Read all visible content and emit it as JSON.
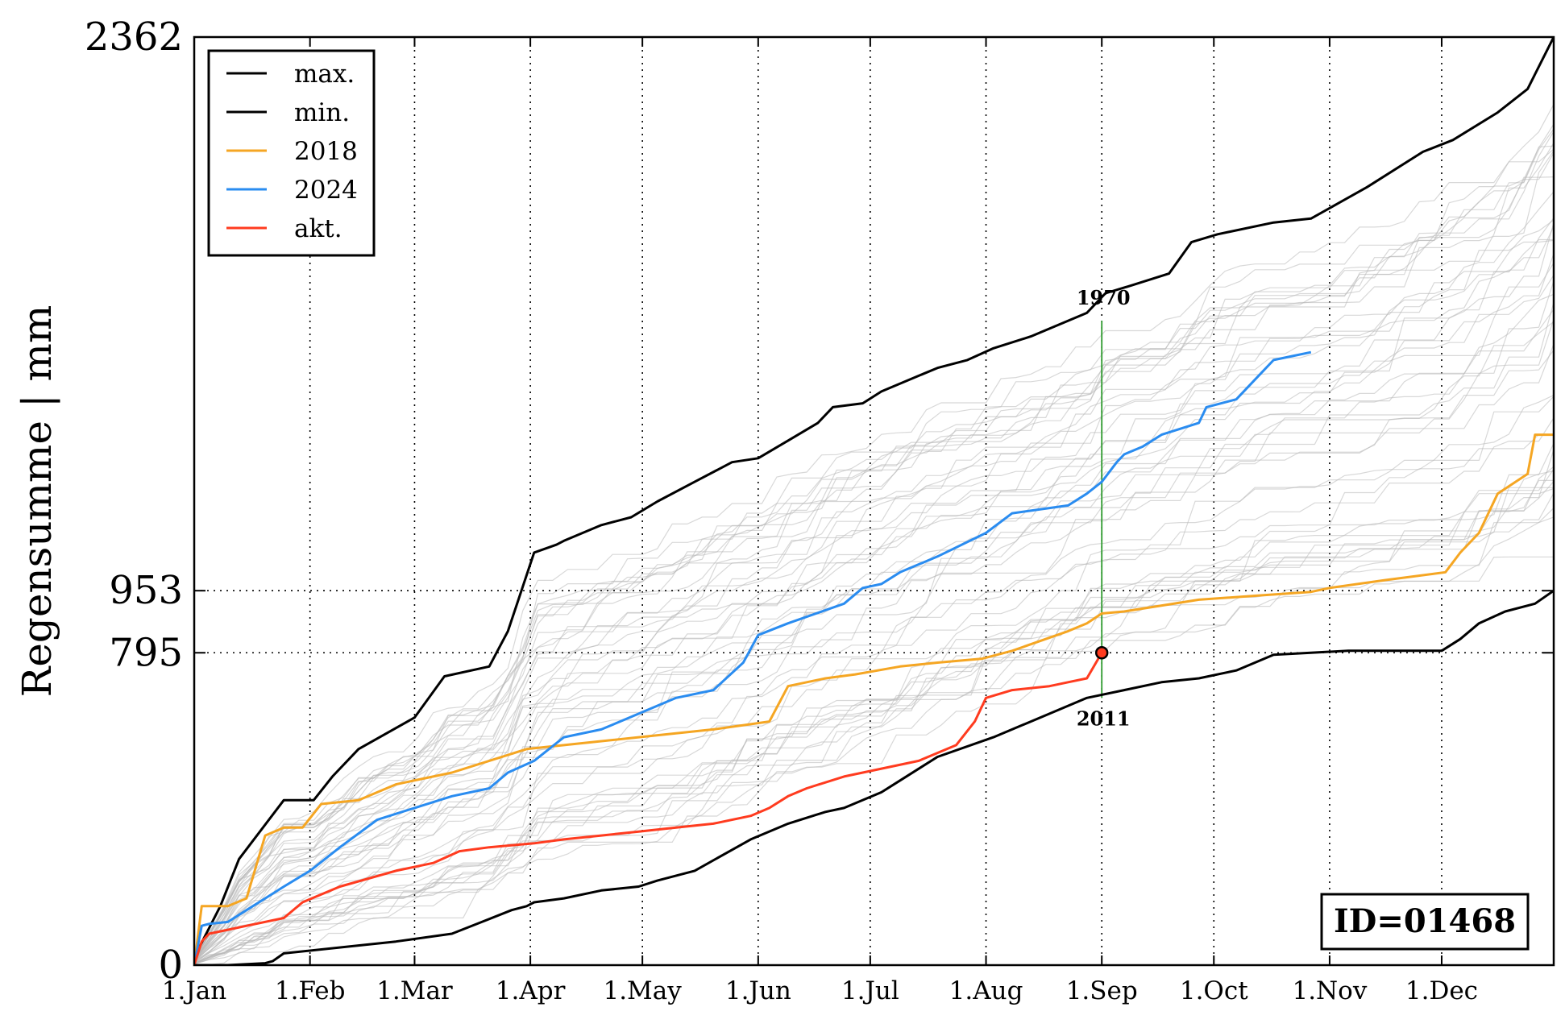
{
  "chart_data": {
    "type": "line",
    "title": "",
    "xlabel": "",
    "ylabel": "Regensumme | mm",
    "x_unit": "day of year",
    "xlim": [
      1,
      365
    ],
    "ylim": [
      0,
      2362
    ],
    "yticks": [
      0,
      795,
      953,
      2362
    ],
    "yticks_dotted_reference": [
      795,
      953
    ],
    "x_ticks": [
      {
        "label": "1.Jan",
        "day": 1
      },
      {
        "label": "1.Feb",
        "day": 32
      },
      {
        "label": "1.Mar",
        "day": 60
      },
      {
        "label": "1.Apr",
        "day": 91
      },
      {
        "label": "1.May",
        "day": 121
      },
      {
        "label": "1.Jun",
        "day": 152
      },
      {
        "label": "1.Jul",
        "day": 182
      },
      {
        "label": "1.Aug",
        "day": 213
      },
      {
        "label": "1.Sep",
        "day": 244
      },
      {
        "label": "1.Oct",
        "day": 274
      },
      {
        "label": "1.Nov",
        "day": 305
      },
      {
        "label": "1.Dec",
        "day": 335
      }
    ],
    "grid": "dotted vertical at month starts",
    "legend_position": "top-left",
    "series": [
      {
        "name": "max.",
        "color": "#000000",
        "x": [
          1,
          8,
          13,
          25,
          33,
          38,
          45,
          60,
          68,
          80,
          85,
          92,
          98,
          100,
          105,
          110,
          118,
          125,
          135,
          145,
          152,
          160,
          168,
          172,
          180,
          185,
          195,
          200,
          208,
          215,
          225,
          235,
          240,
          245,
          252,
          262,
          268,
          275,
          290,
          300,
          315,
          330,
          338,
          350,
          358,
          365
        ],
        "y": [
          20,
          150,
          270,
          420,
          420,
          480,
          550,
          630,
          735,
          760,
          850,
          1050,
          1070,
          1080,
          1100,
          1120,
          1140,
          1180,
          1230,
          1280,
          1290,
          1335,
          1380,
          1420,
          1430,
          1460,
          1500,
          1520,
          1540,
          1570,
          1600,
          1640,
          1660,
          1710,
          1730,
          1760,
          1840,
          1860,
          1890,
          1900,
          1980,
          2070,
          2100,
          2170,
          2230,
          2362
        ]
      },
      {
        "name": "min.",
        "color": "#000000",
        "x": [
          1,
          10,
          20,
          22,
          25,
          45,
          55,
          70,
          78,
          86,
          90,
          92,
          100,
          110,
          120,
          125,
          135,
          150,
          160,
          170,
          175,
          185,
          190,
          200,
          215,
          230,
          240,
          250,
          260,
          270,
          280,
          290,
          310,
          320,
          330,
          335,
          340,
          345,
          352,
          360,
          365
        ],
        "y": [
          0,
          0,
          5,
          10,
          30,
          50,
          60,
          80,
          110,
          140,
          150,
          160,
          170,
          190,
          200,
          215,
          240,
          320,
          360,
          390,
          400,
          440,
          470,
          530,
          580,
          640,
          680,
          700,
          720,
          730,
          750,
          790,
          800,
          800,
          800,
          800,
          830,
          870,
          900,
          920,
          953
        ]
      },
      {
        "name": "2018",
        "color": "#f5a623",
        "x": [
          1,
          3,
          5,
          10,
          15,
          20,
          25,
          30,
          35,
          45,
          55,
          70,
          80,
          90,
          100,
          110,
          120,
          140,
          155,
          160,
          170,
          178,
          190,
          200,
          212,
          220,
          235,
          240,
          244,
          250,
          270,
          285,
          300,
          305,
          320,
          336,
          340,
          345,
          350,
          358,
          360,
          365
        ],
        "y": [
          0,
          150,
          150,
          150,
          170,
          330,
          350,
          350,
          410,
          420,
          460,
          490,
          520,
          550,
          560,
          570,
          580,
          600,
          620,
          710,
          730,
          740,
          760,
          770,
          780,
          800,
          850,
          870,
          895,
          900,
          930,
          940,
          950,
          960,
          980,
          1000,
          1050,
          1100,
          1200,
          1250,
          1350,
          1350
        ]
      },
      {
        "name": "2024",
        "color": "#2a8cf0",
        "x": [
          1,
          3,
          5,
          10,
          15,
          20,
          25,
          32,
          40,
          50,
          60,
          70,
          80,
          85,
          92,
          100,
          110,
          120,
          130,
          140,
          148,
          152,
          160,
          175,
          180,
          185,
          190,
          200,
          213,
          220,
          235,
          240,
          244,
          248,
          250,
          255,
          260,
          270,
          272,
          280,
          285,
          290,
          295,
          300
        ],
        "y": [
          0,
          100,
          105,
          110,
          140,
          170,
          200,
          240,
          300,
          370,
          400,
          430,
          450,
          490,
          520,
          580,
          600,
          640,
          680,
          700,
          770,
          840,
          870,
          920,
          960,
          970,
          1000,
          1040,
          1100,
          1150,
          1170,
          1200,
          1230,
          1280,
          1300,
          1320,
          1350,
          1380,
          1420,
          1440,
          1490,
          1540,
          1550,
          1560
        ]
      },
      {
        "name": "akt.",
        "color": "#ff3b1f",
        "x": [
          1,
          3,
          5,
          10,
          15,
          25,
          30,
          40,
          55,
          65,
          72,
          80,
          92,
          100,
          110,
          120,
          130,
          140,
          150,
          155,
          160,
          165,
          175,
          185,
          195,
          205,
          210,
          213,
          220,
          230,
          235,
          240,
          244
        ],
        "y": [
          0,
          60,
          80,
          90,
          100,
          120,
          160,
          200,
          240,
          260,
          290,
          300,
          310,
          320,
          330,
          340,
          350,
          360,
          380,
          400,
          430,
          450,
          480,
          500,
          520,
          560,
          620,
          680,
          700,
          710,
          720,
          730,
          795
        ]
      }
    ],
    "background_years": "gray thin lines (all other years)",
    "annotations": {
      "vertical_marker_day": 244,
      "marker_line_color": "#2e9b2e",
      "top_year_label": "1970",
      "top_year_value": 1640,
      "bottom_year_label": "2011",
      "bottom_year_value": 680,
      "current_point": {
        "day": 244,
        "value": 795,
        "color": "#ff3b1f"
      },
      "id_box_text": "ID=01468"
    }
  }
}
